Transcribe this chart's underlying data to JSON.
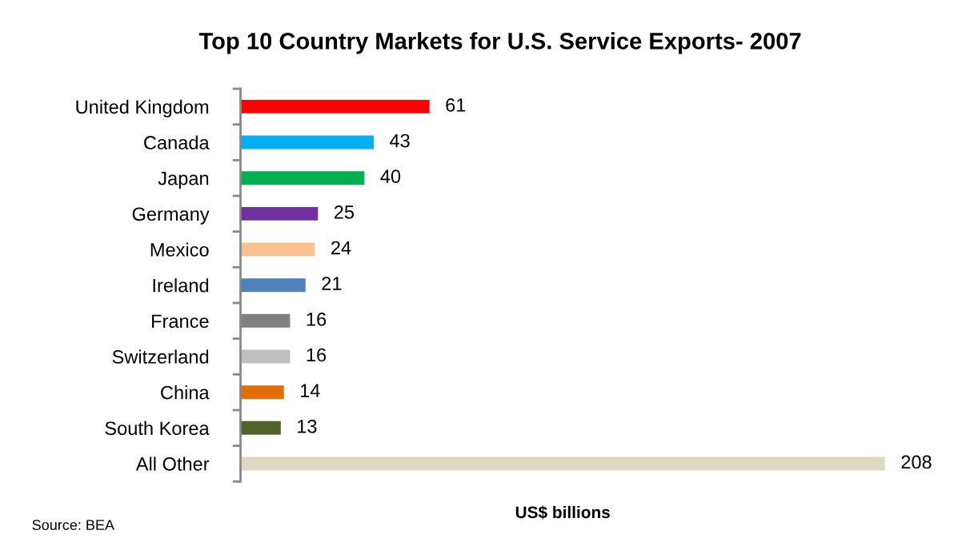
{
  "chart_data": {
    "type": "bar",
    "orientation": "horizontal",
    "title": "Top 10 Country Markets for U.S. Service Exports- 2007",
    "xlabel": "US$ billions",
    "categories": [
      "United Kingdom",
      "Canada",
      "Japan",
      "Germany",
      "Mexico",
      "Ireland",
      "France",
      "Switzerland",
      "China",
      "South Korea",
      "All Other"
    ],
    "values": [
      61,
      43,
      40,
      25,
      24,
      21,
      16,
      16,
      14,
      13,
      208
    ],
    "colors": [
      "#ff0000",
      "#00b0f0",
      "#00b050",
      "#7030a0",
      "#fac090",
      "#4f81bd",
      "#808080",
      "#bfbfbf",
      "#e46c0a",
      "#4f6228",
      "#ddd9c3"
    ],
    "data_labels": true,
    "grid": false,
    "legend": false,
    "annotations": [
      "Source: BEA"
    ]
  }
}
